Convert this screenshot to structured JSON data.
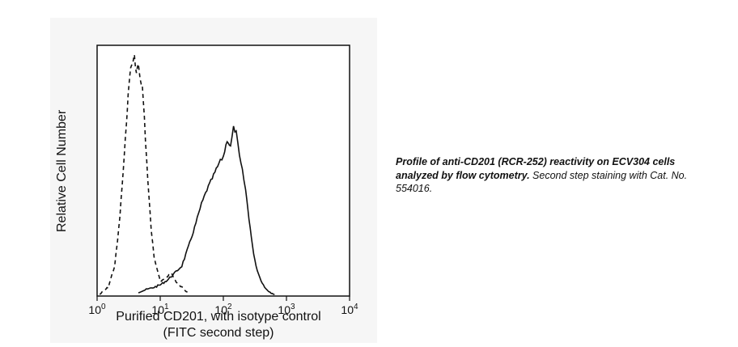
{
  "chart_data": {
    "type": "line",
    "xscale": "log",
    "xlim": [
      1,
      10000
    ],
    "ylim": [
      0,
      1
    ],
    "xlabel_line1": "Purified CD201, with isotype control",
    "xlabel_line2": "(FITC second step)",
    "ylabel": "Relative Cell Number",
    "xtick_labels": [
      {
        "base": "10",
        "exp": "0",
        "value": 1
      },
      {
        "base": "10",
        "exp": "1",
        "value": 10
      },
      {
        "base": "10",
        "exp": "2",
        "value": 100
      },
      {
        "base": "10",
        "exp": "3",
        "value": 1000
      },
      {
        "base": "10",
        "exp": "4",
        "value": 10000
      }
    ],
    "legend": "none",
    "grid": false,
    "series": [
      {
        "style": "dashed",
        "x": [
          1.1,
          1.5,
          1.9,
          2.1,
          2.3,
          2.5,
          2.7,
          2.9,
          3.1,
          3.3,
          3.5,
          3.7,
          3.9,
          4.2,
          4.5,
          4.8,
          5.2,
          5.6,
          6.1,
          6.6,
          7.2,
          8.0,
          9.0,
          10.2,
          12,
          15,
          18,
          22,
          27
        ],
        "y": [
          0.0,
          0.03,
          0.12,
          0.22,
          0.33,
          0.46,
          0.58,
          0.72,
          0.83,
          0.93,
          0.96,
          0.98,
          1.0,
          0.93,
          0.97,
          0.9,
          0.88,
          0.74,
          0.56,
          0.42,
          0.27,
          0.16,
          0.1,
          0.05,
          0.07,
          0.09,
          0.05,
          0.03,
          0.01
        ]
      },
      {
        "style": "solid",
        "x": [
          4.5,
          6,
          8,
          10,
          13,
          17,
          22,
          28,
          35,
          45,
          55,
          70,
          85,
          100,
          115,
          130,
          145,
          160,
          180,
          200,
          225,
          255,
          290,
          330,
          380,
          450,
          550,
          650
        ],
        "y": [
          0.01,
          0.02,
          0.03,
          0.04,
          0.06,
          0.09,
          0.12,
          0.2,
          0.28,
          0.38,
          0.44,
          0.5,
          0.55,
          0.58,
          0.65,
          0.62,
          0.7,
          0.68,
          0.58,
          0.52,
          0.44,
          0.32,
          0.2,
          0.12,
          0.07,
          0.03,
          0.01,
          0.0
        ]
      }
    ]
  },
  "caption": {
    "bold": "Profile of anti-CD201 (RCR-252) reactivity on ECV304 cells analyzed by flow cytometry.",
    "normal": " Second step staining with Cat. No. 554016."
  }
}
